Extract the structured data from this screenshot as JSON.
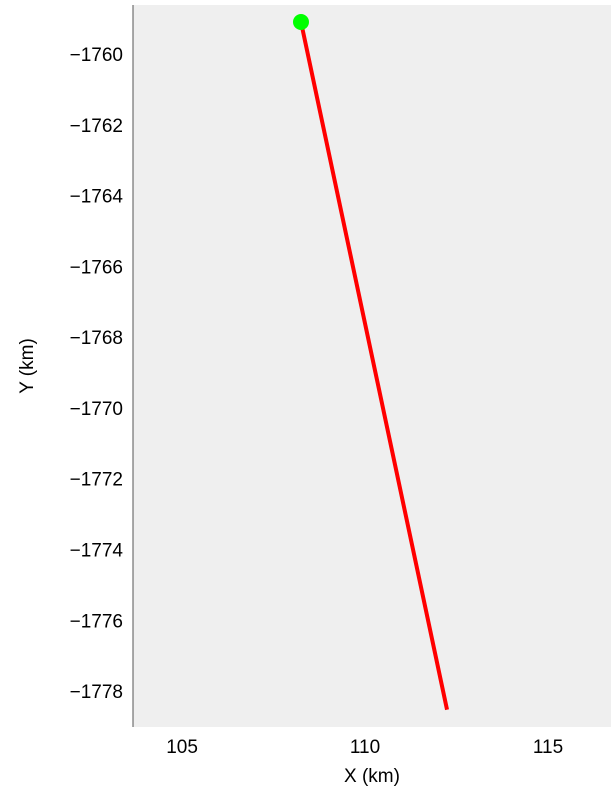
{
  "chart_data": {
    "type": "line",
    "xlabel": "X (km)",
    "ylabel": "Y (km)",
    "xlim": [
      103.66,
      116.72
    ],
    "ylim": [
      -1778.96,
      -1758.56
    ],
    "xticks": [
      105,
      110,
      115
    ],
    "yticks": [
      {
        "value": -1760,
        "label": "−1760"
      },
      {
        "value": -1762,
        "label": "−1762"
      },
      {
        "value": -1764,
        "label": "−1764"
      },
      {
        "value": -1766,
        "label": "−1766"
      },
      {
        "value": -1768,
        "label": "−1768"
      },
      {
        "value": -1770,
        "label": "−1770"
      },
      {
        "value": -1772,
        "label": "−1772"
      },
      {
        "value": -1774,
        "label": "−1774"
      },
      {
        "value": -1776,
        "label": "−1776"
      },
      {
        "value": -1778,
        "label": "−1778"
      }
    ],
    "background": "#efefef",
    "series": [
      {
        "color": "#ff0000",
        "x": [
          108.25,
          112.24
        ],
        "values": [
          -1759.04,
          -1778.47
        ]
      }
    ],
    "points": [
      {
        "color": "#00ff00",
        "x": 108.25,
        "y": -1759.04
      }
    ]
  }
}
